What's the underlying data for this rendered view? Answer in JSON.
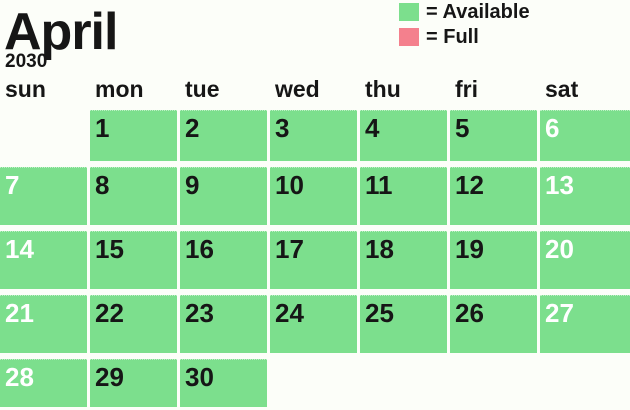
{
  "header": {
    "month": "April",
    "year": "2030"
  },
  "legend": {
    "items": [
      {
        "label": "= Available",
        "status": "available",
        "color": "#7cdf8d"
      },
      {
        "label": "= Full",
        "status": "full",
        "color": "#f4808d"
      }
    ]
  },
  "weekday_headers": [
    "sun",
    "mon",
    "tue",
    "wed",
    "thu",
    "fri",
    "sat"
  ],
  "calendar": {
    "cells": [
      {
        "day": "",
        "status": "empty",
        "weekend": true
      },
      {
        "day": "1",
        "status": "available",
        "weekend": false
      },
      {
        "day": "2",
        "status": "available",
        "weekend": false
      },
      {
        "day": "3",
        "status": "available",
        "weekend": false
      },
      {
        "day": "4",
        "status": "available",
        "weekend": false
      },
      {
        "day": "5",
        "status": "available",
        "weekend": false
      },
      {
        "day": "6",
        "status": "available",
        "weekend": true
      },
      {
        "day": "7",
        "status": "available",
        "weekend": true
      },
      {
        "day": "8",
        "status": "available",
        "weekend": false
      },
      {
        "day": "9",
        "status": "available",
        "weekend": false
      },
      {
        "day": "10",
        "status": "available",
        "weekend": false
      },
      {
        "day": "11",
        "status": "available",
        "weekend": false
      },
      {
        "day": "12",
        "status": "available",
        "weekend": false
      },
      {
        "day": "13",
        "status": "available",
        "weekend": true
      },
      {
        "day": "14",
        "status": "available",
        "weekend": true
      },
      {
        "day": "15",
        "status": "available",
        "weekend": false
      },
      {
        "day": "16",
        "status": "available",
        "weekend": false
      },
      {
        "day": "17",
        "status": "available",
        "weekend": false
      },
      {
        "day": "18",
        "status": "available",
        "weekend": false
      },
      {
        "day": "19",
        "status": "available",
        "weekend": false
      },
      {
        "day": "20",
        "status": "available",
        "weekend": true
      },
      {
        "day": "21",
        "status": "available",
        "weekend": true
      },
      {
        "day": "22",
        "status": "available",
        "weekend": false
      },
      {
        "day": "23",
        "status": "available",
        "weekend": false
      },
      {
        "day": "24",
        "status": "available",
        "weekend": false
      },
      {
        "day": "25",
        "status": "available",
        "weekend": false
      },
      {
        "day": "26",
        "status": "available",
        "weekend": false
      },
      {
        "day": "27",
        "status": "available",
        "weekend": true
      },
      {
        "day": "28",
        "status": "available",
        "weekend": true
      },
      {
        "day": "29",
        "status": "available",
        "weekend": false
      },
      {
        "day": "30",
        "status": "available",
        "weekend": false
      },
      {
        "day": "",
        "status": "empty",
        "weekend": false
      },
      {
        "day": "",
        "status": "empty",
        "weekend": false
      },
      {
        "day": "",
        "status": "empty",
        "weekend": false
      },
      {
        "day": "",
        "status": "empty",
        "weekend": true
      }
    ]
  },
  "colors": {
    "available": "#7cdf8d",
    "full": "#f4808d",
    "text_dark": "#161616",
    "text_light": "#ffffff",
    "page_background": "#fcfef9"
  }
}
